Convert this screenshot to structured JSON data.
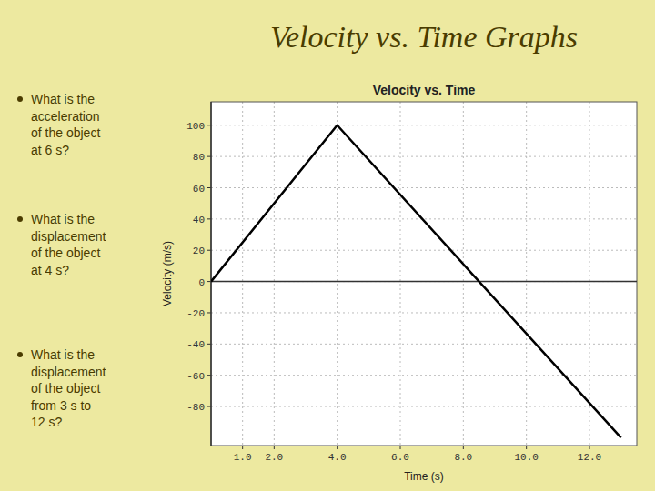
{
  "chart_data": {
    "type": "line",
    "title": "Velocity vs. Time Graphs",
    "subtitle": "Velocity vs. Time",
    "x_label": "Time (s)",
    "y_label": "Velocity (m/s)",
    "x": [
      0,
      4,
      13
    ],
    "values": [
      0,
      100,
      -100
    ],
    "color": "#000000",
    "xlim": [
      0,
      13.5
    ],
    "ylim": [
      -105,
      115
    ],
    "xticks": [
      {
        "value": 1.0,
        "label": "1.0"
      },
      {
        "value": 2.0,
        "label": "2.0"
      },
      {
        "value": 4.0,
        "label": "4.0"
      },
      {
        "value": 6.0,
        "label": "6.0"
      },
      {
        "value": 8.0,
        "label": "8.0"
      },
      {
        "value": 10.0,
        "label": "10.0"
      },
      {
        "value": 12.0,
        "label": "12.0"
      }
    ],
    "yticks": [
      -80,
      -60,
      -40,
      -20,
      0,
      20,
      40,
      60,
      80,
      100
    ],
    "grid": true,
    "annotations": [
      "What is the\nacceleration\nof the object\nat 6 s?",
      "What is the\ndisplacement\nof the object\nat 4 s?",
      "What is the\ndisplacement\nof the object\nfrom 3 s to\n12 s?"
    ]
  }
}
